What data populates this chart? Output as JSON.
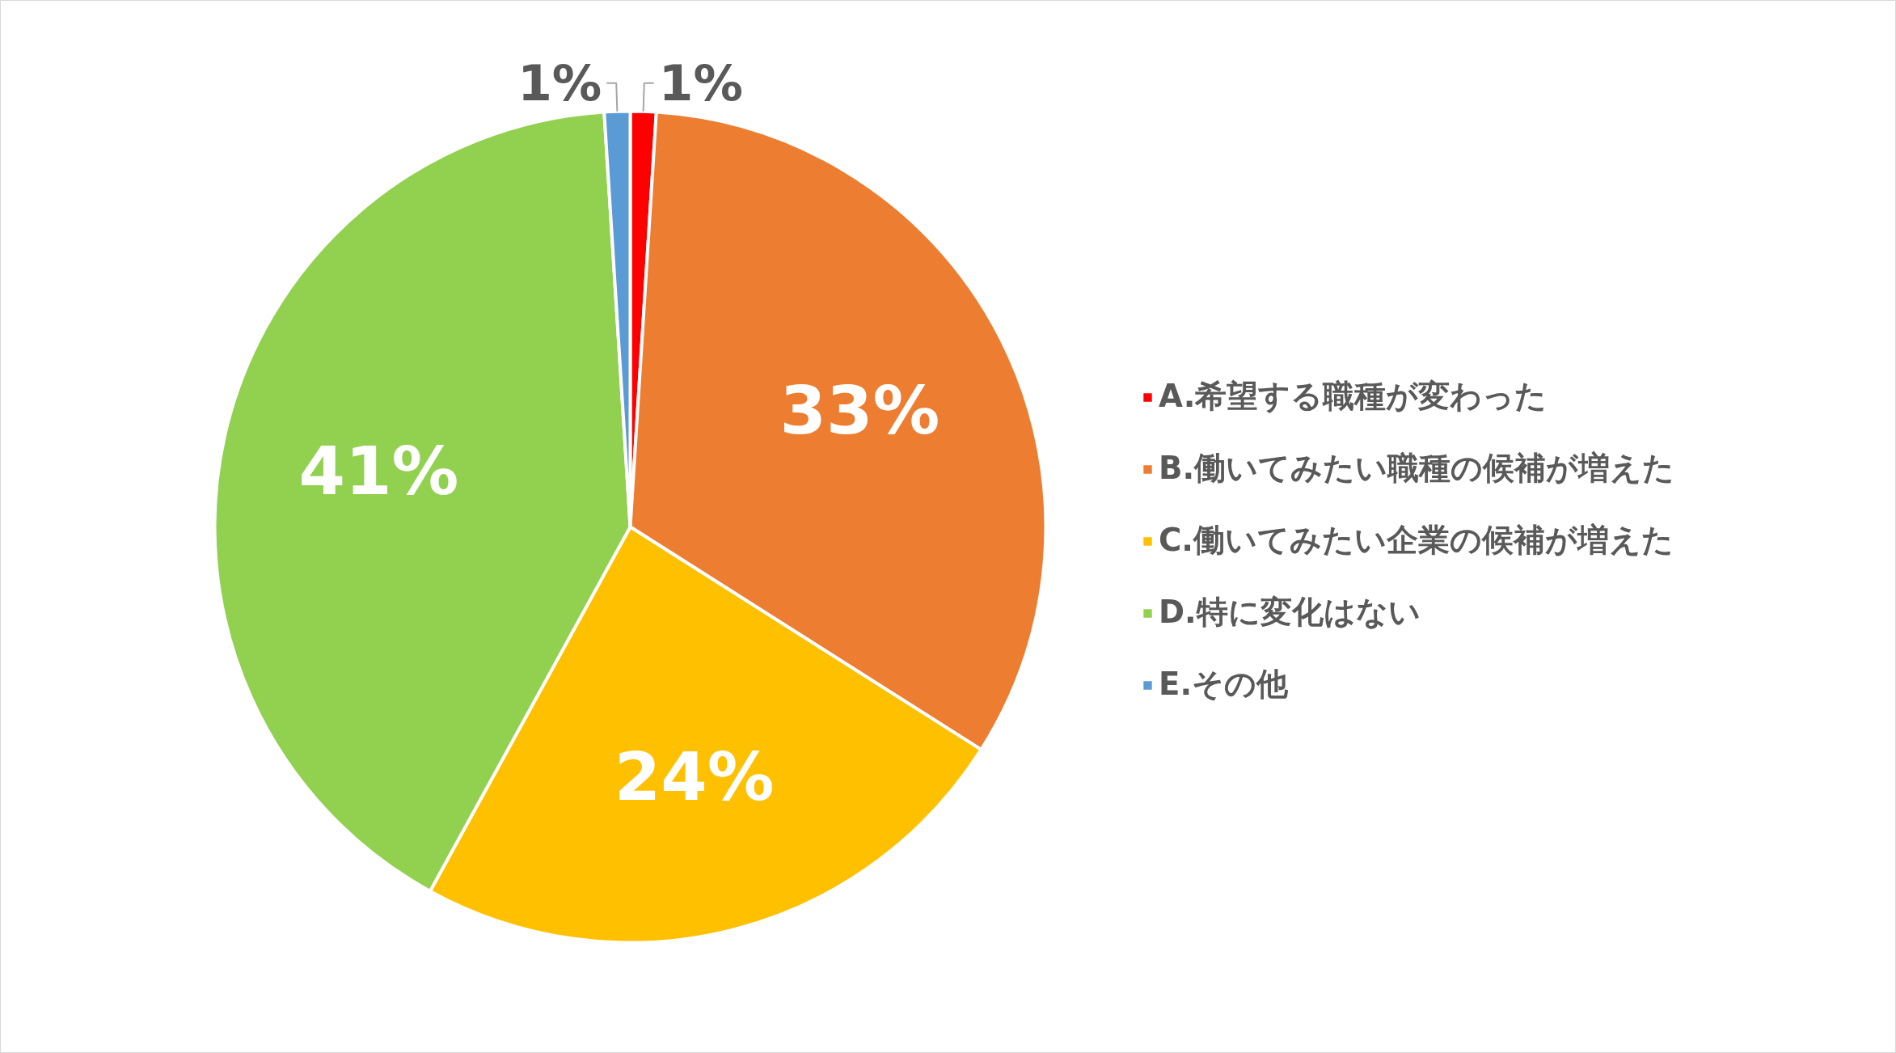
{
  "chart_data": {
    "type": "pie",
    "categories": [
      "A.希望する職種が変わった",
      "B.働いてみたい職種の候補が増えた",
      "C.働いてみたい企業の候補が増えた",
      "D.特に変化はない",
      "E.その他"
    ],
    "values": [
      1,
      33,
      24,
      41,
      1
    ],
    "colors": [
      "#ff0000",
      "#ed7d31",
      "#ffc000",
      "#92d050",
      "#5b9bd5"
    ],
    "value_labels": [
      "1%",
      "33%",
      "24%",
      "41%",
      "1%"
    ],
    "legend": "right"
  }
}
